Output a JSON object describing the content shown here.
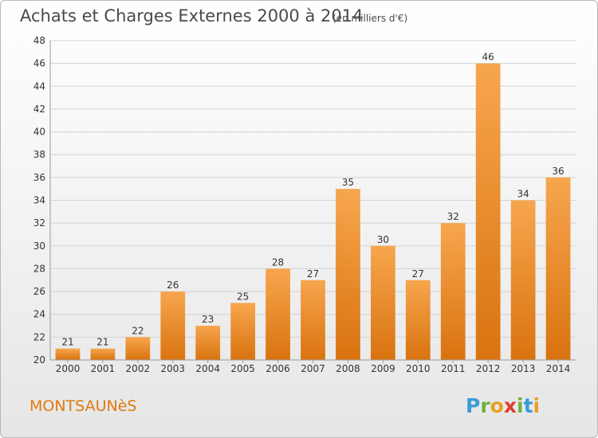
{
  "chart_data": {
    "type": "bar",
    "title": "Achats et Charges Externes 2000 à 2014",
    "subtitle": "(en milliers d'€)",
    "categories": [
      "2000",
      "2001",
      "2002",
      "2003",
      "2004",
      "2005",
      "2006",
      "2007",
      "2008",
      "2009",
      "2010",
      "2011",
      "2012",
      "2013",
      "2014"
    ],
    "values": [
      21,
      21,
      22,
      26,
      23,
      25,
      28,
      27,
      35,
      30,
      27,
      32,
      46,
      34,
      36
    ],
    "ylim": [
      20,
      48
    ],
    "yticks": [
      20,
      22,
      24,
      26,
      28,
      30,
      32,
      34,
      36,
      38,
      40,
      42,
      44,
      46,
      48
    ],
    "xlabel": "",
    "ylabel": "",
    "grid": true,
    "bar_color_light": "#f7a64e",
    "bar_color_dark": "#d9730f"
  },
  "commune": "MONTSAUNèS",
  "logo": {
    "letters": [
      "P",
      "r",
      "o",
      "x",
      "i",
      "t",
      "i"
    ],
    "colors": [
      "#3a9bd5",
      "#6cb33f",
      "#e8a020",
      "#e23c2e",
      "#6cb33f",
      "#3a9bd5",
      "#e8a020"
    ]
  }
}
